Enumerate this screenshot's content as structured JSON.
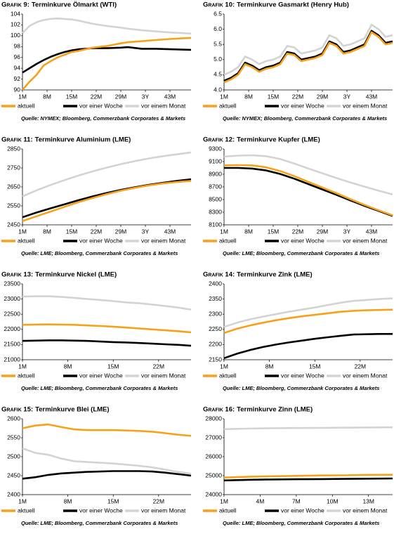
{
  "chart_data": [
    {
      "type": "line",
      "label": "Grafik 9:",
      "title": "Terminkurve Ölmarkt (WTI)",
      "source": "Quelle: NYMEX; Bloomberg, Commerzbank Corporates & Markets",
      "x": [
        1,
        3,
        5,
        7,
        9,
        11,
        13,
        15,
        17,
        19,
        21,
        25,
        29,
        31,
        35,
        39,
        43,
        49
      ],
      "xlim": [
        1,
        49
      ],
      "xticks": [
        {
          "value": 1,
          "label": "1M"
        },
        {
          "value": 8,
          "label": "8M"
        },
        {
          "value": 15,
          "label": "15M"
        },
        {
          "value": 22,
          "label": "22M"
        },
        {
          "value": 29,
          "label": "29M"
        },
        {
          "value": 36,
          "label": "3Y"
        },
        {
          "value": 43,
          "label": "43M"
        }
      ],
      "ylim": [
        90,
        104
      ],
      "yticks": [
        90,
        92,
        94,
        96,
        98,
        100,
        102,
        104
      ],
      "series": [
        {
          "name": "aktuell",
          "color": "#f7a11a",
          "values": [
            90,
            91.5,
            92.8,
            94.5,
            95.3,
            96,
            96.5,
            97,
            97.2,
            97.5,
            97.8,
            98.1,
            98.6,
            98.8,
            99,
            99.2,
            99.4,
            99.6
          ]
        },
        {
          "name": "vor einer Woche",
          "color": "#000000",
          "values": [
            93.2,
            94,
            94.8,
            95.5,
            96.1,
            96.6,
            97,
            97.3,
            97.5,
            97.6,
            97.7,
            97.7,
            97.8,
            97.9,
            97.6,
            97.6,
            97.5,
            97.4
          ]
        },
        {
          "name": "vor einem Monat",
          "color": "#d3d3d3",
          "values": [
            100.5,
            101.8,
            102.5,
            102.9,
            103.1,
            103.2,
            103.1,
            103,
            102.8,
            102.5,
            102.2,
            101.8,
            101.5,
            101.3,
            101,
            100.8,
            100.6,
            100.4
          ]
        }
      ]
    },
    {
      "type": "line",
      "label": "Grafik 10:",
      "title": "Terminkurve Gasmarkt (Henry Hub)",
      "source": "Quelle: NYMEX; Bloomberg, Commerzbank Corporates & Markets",
      "x": [
        1,
        3,
        5,
        7,
        9,
        11,
        13,
        15,
        17,
        19,
        21,
        23,
        25,
        27,
        29,
        31,
        33,
        35,
        37,
        39,
        41,
        43,
        45,
        47,
        49
      ],
      "xlim": [
        1,
        49
      ],
      "xticks": [
        {
          "value": 1,
          "label": "1M"
        },
        {
          "value": 8,
          "label": "8M"
        },
        {
          "value": 15,
          "label": "15M"
        },
        {
          "value": 22,
          "label": "22M"
        },
        {
          "value": 29,
          "label": "29M"
        },
        {
          "value": 36,
          "label": "3Y"
        },
        {
          "value": 43,
          "label": "43M"
        }
      ],
      "ylim": [
        4,
        6.5
      ],
      "yticks": [
        {
          "value": 4,
          "label": "4.0"
        },
        4.5,
        {
          "value": 5,
          "label": "5.0"
        },
        5.5,
        {
          "value": 6,
          "label": "6.0"
        },
        6.5
      ],
      "series": [
        {
          "name": "aktuell",
          "color": "#f7a11a",
          "values": [
            4.25,
            4.35,
            4.5,
            4.85,
            4.75,
            4.6,
            4.7,
            4.75,
            4.85,
            5.2,
            5.15,
            4.95,
            5.0,
            5.05,
            5.15,
            5.55,
            5.45,
            5.2,
            5.25,
            5.35,
            5.45,
            5.9,
            5.75,
            5.5,
            5.55
          ]
        },
        {
          "name": "vor einer Woche",
          "color": "#000000",
          "values": [
            4.3,
            4.4,
            4.55,
            4.9,
            4.8,
            4.65,
            4.75,
            4.8,
            4.9,
            5.25,
            5.2,
            5.0,
            5.05,
            5.1,
            5.2,
            5.6,
            5.5,
            5.25,
            5.3,
            5.4,
            5.5,
            5.95,
            5.8,
            5.55,
            5.6
          ]
        },
        {
          "name": "vor einem Monat",
          "color": "#d3d3d3",
          "values": [
            4.5,
            4.6,
            4.75,
            5.1,
            5.0,
            4.85,
            4.95,
            5.0,
            5.1,
            5.45,
            5.4,
            5.2,
            5.25,
            5.3,
            5.4,
            5.8,
            5.7,
            5.45,
            5.5,
            5.6,
            5.7,
            6.15,
            6.0,
            5.75,
            5.8
          ]
        }
      ]
    },
    {
      "type": "line",
      "label": "Grafik 11:",
      "title": "Terminkurve Aluminium (LME)",
      "source": "Quelle: LME; Bloomberg, Commerzbank Corporates & Markets",
      "x": [
        1,
        5,
        9,
        13,
        17,
        21,
        25,
        29,
        33,
        37,
        41,
        45,
        49
      ],
      "xlim": [
        1,
        49
      ],
      "xticks": [
        {
          "value": 1,
          "label": "1M"
        },
        {
          "value": 8,
          "label": "8M"
        },
        {
          "value": 15,
          "label": "15M"
        },
        {
          "value": 22,
          "label": "22M"
        },
        {
          "value": 29,
          "label": "29M"
        },
        {
          "value": 36,
          "label": "3Y"
        },
        {
          "value": 43,
          "label": "43M"
        }
      ],
      "ylim": [
        2450,
        2850
      ],
      "yticks": [
        2450,
        2550,
        2650,
        2750,
        2850
      ],
      "series": [
        {
          "name": "aktuell",
          "color": "#f7a11a",
          "values": [
            2470,
            2495,
            2520,
            2545,
            2570,
            2592,
            2612,
            2630,
            2645,
            2658,
            2668,
            2676,
            2682
          ]
        },
        {
          "name": "vor einer Woche",
          "color": "#000000",
          "values": [
            2490,
            2515,
            2537,
            2558,
            2580,
            2600,
            2618,
            2634,
            2648,
            2661,
            2672,
            2682,
            2690
          ]
        },
        {
          "name": "vor einem Monat",
          "color": "#d3d3d3",
          "values": [
            2600,
            2632,
            2660,
            2686,
            2710,
            2732,
            2752,
            2770,
            2786,
            2800,
            2812,
            2822,
            2832
          ]
        }
      ]
    },
    {
      "type": "line",
      "label": "Grafik 12:",
      "title": "Terminkurve Kupfer (LME)",
      "source": "Quelle: LME; Bloomberg, Commerzbank Corporates & Markets",
      "x": [
        1,
        5,
        9,
        13,
        17,
        21,
        25,
        29,
        33,
        37,
        41,
        45,
        49
      ],
      "xlim": [
        1,
        49
      ],
      "xticks": [
        {
          "value": 1,
          "label": "1M"
        },
        {
          "value": 8,
          "label": "8M"
        },
        {
          "value": 15,
          "label": "15M"
        },
        {
          "value": 22,
          "label": "22M"
        },
        {
          "value": 29,
          "label": "29M"
        },
        {
          "value": 36,
          "label": "3Y"
        },
        {
          "value": 43,
          "label": "43M"
        }
      ],
      "ylim": [
        8100,
        9300
      ],
      "yticks": [
        8100,
        8300,
        8500,
        8700,
        8900,
        9100,
        9300
      ],
      "series": [
        {
          "name": "aktuell",
          "color": "#f7a11a",
          "values": [
            9040,
            9045,
            9040,
            9010,
            8950,
            8870,
            8780,
            8690,
            8600,
            8505,
            8415,
            8330,
            8250
          ]
        },
        {
          "name": "vor einer Woche",
          "color": "#000000",
          "values": [
            9000,
            9000,
            8990,
            8960,
            8905,
            8830,
            8745,
            8660,
            8575,
            8485,
            8400,
            8320,
            8240
          ]
        },
        {
          "name": "vor einem Monat",
          "color": "#d3d3d3",
          "values": [
            9180,
            9195,
            9200,
            9185,
            9140,
            9070,
            8990,
            8915,
            8840,
            8770,
            8705,
            8640,
            8580
          ]
        }
      ]
    },
    {
      "type": "line",
      "label": "Grafik 13:",
      "title": "Terminkurve Nickel (LME)",
      "source": "Quelle: LME; Bloomberg, Commerzbank Corporates & Markets",
      "x": [
        1,
        3,
        5,
        7,
        9,
        11,
        13,
        15,
        17,
        19,
        21,
        23,
        25,
        27
      ],
      "xlim": [
        1,
        27
      ],
      "xticks": [
        {
          "value": 1,
          "label": "1M"
        },
        {
          "value": 8,
          "label": "8M"
        },
        {
          "value": 15,
          "label": "15M"
        },
        {
          "value": 22,
          "label": "22M"
        }
      ],
      "ylim": [
        21000,
        23500
      ],
      "yticks": [
        21000,
        21500,
        22000,
        22500,
        23000,
        23500
      ],
      "series": [
        {
          "name": "aktuell",
          "color": "#f7a11a",
          "values": [
            22150,
            22160,
            22165,
            22160,
            22150,
            22130,
            22110,
            22090,
            22060,
            22030,
            22000,
            21970,
            21940,
            21900
          ]
        },
        {
          "name": "vor einer Woche",
          "color": "#000000",
          "values": [
            21620,
            21630,
            21640,
            21640,
            21630,
            21620,
            21600,
            21580,
            21570,
            21550,
            21530,
            21510,
            21490,
            21460
          ]
        },
        {
          "name": "vor einem Monat",
          "color": "#d3d3d3",
          "values": [
            23080,
            23090,
            23090,
            23070,
            23040,
            23000,
            22970,
            22930,
            22890,
            22860,
            22820,
            22770,
            22720,
            22650
          ]
        }
      ]
    },
    {
      "type": "line",
      "label": "Grafik 14:",
      "title": "Terminkurve Zink (LME)",
      "source": "Quelle: LME; Bloomberg, Commerzbank Corporates & Markets",
      "x": [
        1,
        3,
        5,
        7,
        9,
        11,
        13,
        15,
        17,
        19,
        21,
        23,
        25,
        27
      ],
      "xlim": [
        1,
        27
      ],
      "xticks": [
        {
          "value": 1,
          "label": "1M"
        },
        {
          "value": 8,
          "label": "8M"
        },
        {
          "value": 15,
          "label": "15M"
        },
        {
          "value": 22,
          "label": "22M"
        }
      ],
      "ylim": [
        2150,
        2400
      ],
      "yticks": [
        2150,
        2200,
        2250,
        2300,
        2350,
        2400
      ],
      "series": [
        {
          "name": "aktuell",
          "color": "#f7a11a",
          "values": [
            2238,
            2252,
            2263,
            2272,
            2280,
            2287,
            2293,
            2298,
            2303,
            2308,
            2311,
            2313,
            2314,
            2315
          ]
        },
        {
          "name": "vor einer Woche",
          "color": "#000000",
          "values": [
            2155,
            2170,
            2182,
            2192,
            2200,
            2207,
            2213,
            2219,
            2224,
            2229,
            2233,
            2234,
            2235,
            2235
          ]
        },
        {
          "name": "vor einem Monat",
          "color": "#d3d3d3",
          "values": [
            2258,
            2272,
            2283,
            2292,
            2300,
            2308,
            2315,
            2322,
            2330,
            2338,
            2344,
            2347,
            2350,
            2352
          ]
        }
      ]
    },
    {
      "type": "line",
      "label": "Grafik 15:",
      "title": "Terminkurve Blei (LME)",
      "source": "Quelle: LME; Bloomberg, Commerzbank Corporates & Markets",
      "x": [
        1,
        3,
        5,
        7,
        9,
        11,
        13,
        15,
        17,
        19,
        21,
        23,
        25,
        27
      ],
      "xlim": [
        1,
        27
      ],
      "xticks": [
        {
          "value": 1,
          "label": "1M"
        },
        {
          "value": 8,
          "label": "8M"
        },
        {
          "value": 15,
          "label": "15M"
        },
        {
          "value": 22,
          "label": "22M"
        }
      ],
      "ylim": [
        2400,
        2600
      ],
      "yticks": [
        2400,
        2450,
        2500,
        2550,
        2600
      ],
      "series": [
        {
          "name": "aktuell",
          "color": "#f7a11a",
          "values": [
            2575,
            2582,
            2585,
            2578,
            2572,
            2570,
            2570,
            2570,
            2569,
            2568,
            2566,
            2562,
            2558,
            2555
          ]
        },
        {
          "name": "vor einer Woche",
          "color": "#000000",
          "values": [
            2442,
            2446,
            2452,
            2456,
            2458,
            2460,
            2461,
            2462,
            2462,
            2462,
            2461,
            2458,
            2454,
            2450
          ]
        },
        {
          "name": "vor einem Monat",
          "color": "#d3d3d3",
          "values": [
            2522,
            2510,
            2505,
            2495,
            2488,
            2486,
            2484,
            2482,
            2479,
            2476,
            2472,
            2466,
            2460,
            2455
          ]
        }
      ]
    },
    {
      "type": "line",
      "label": "Grafik 16:",
      "title": "Terminkurve Zinn (LME)",
      "source": "Quelle: LME; Bloomberg, Commerzbank Corporates & Markets",
      "x": [
        1,
        3,
        5,
        7,
        9,
        11,
        13,
        15
      ],
      "xlim": [
        1,
        15
      ],
      "xticks": [
        {
          "value": 1,
          "label": "1M"
        },
        {
          "value": 4,
          "label": "4M"
        },
        {
          "value": 7,
          "label": "7M"
        },
        {
          "value": 10,
          "label": "10M"
        },
        {
          "value": 13,
          "label": "13M"
        }
      ],
      "ylim": [
        24000,
        28000
      ],
      "yticks": [
        24000,
        25000,
        26000,
        27000,
        28000
      ],
      "series": [
        {
          "name": "aktuell",
          "color": "#f7a11a",
          "values": [
            24900,
            24940,
            24970,
            24990,
            25010,
            25020,
            25040,
            25050
          ]
        },
        {
          "name": "vor einer Woche",
          "color": "#000000",
          "values": [
            24750,
            24780,
            24800,
            24810,
            24820,
            24830,
            24840,
            24850
          ]
        },
        {
          "name": "vor einem Monat",
          "color": "#d3d3d3",
          "values": [
            27450,
            27480,
            27500,
            27510,
            27520,
            27530,
            27540,
            27550
          ]
        }
      ]
    }
  ]
}
